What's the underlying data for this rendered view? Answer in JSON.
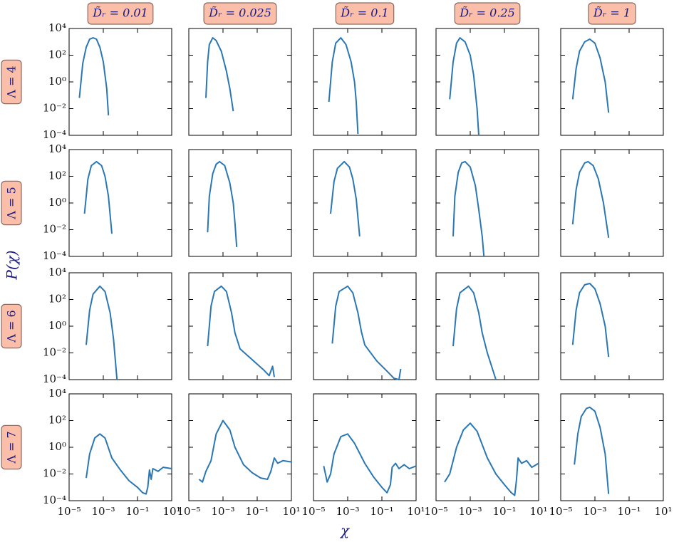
{
  "chart_data": {
    "type": "line",
    "xscale": "log",
    "yscale": "log",
    "col_titles": [
      "D̃ᵣ = 0.01",
      "D̃ᵣ = 0.025",
      "D̃ᵣ = 0.1",
      "D̃ᵣ = 0.25",
      "D̃ᵣ = 1"
    ],
    "row_titles": [
      "Λ = 4",
      "Λ = 5",
      "Λ = 6",
      "Λ = 7"
    ],
    "xlabel": "χ",
    "ylabel": "P(χ)",
    "color": "#2a77b4",
    "xlim": [
      1e-05,
      10
    ],
    "ylim": [
      0.0001,
      10000
    ],
    "xticks": [
      {
        "value": 1e-05,
        "label": "10⁻⁵"
      },
      {
        "value": 0.001,
        "label": "10⁻³"
      },
      {
        "value": 0.1,
        "label": "10⁻¹"
      },
      {
        "value": 10,
        "label": "10¹"
      }
    ],
    "yticks": [
      {
        "value": 0.0001,
        "label": "10⁻⁴"
      },
      {
        "value": 0.01,
        "label": "10⁻²"
      },
      {
        "value": 1,
        "label": "10⁰"
      },
      {
        "value": 100,
        "label": "10²"
      },
      {
        "value": 10000,
        "label": "10⁴"
      }
    ],
    "panels": [
      {
        "x": [
          3.98e-05,
          6.31e-05,
          0.0001,
          0.000158,
          0.000251,
          0.000398,
          0.000631,
          0.001,
          0.00158,
          0.002
        ],
        "values": [
          0.0631,
          25.1,
          398,
          1585,
          1995,
          1585,
          398,
          31.6,
          0.316,
          0.00316
        ]
      },
      {
        "x": [
          0.0001,
          0.000126,
          0.000158,
          0.000251,
          0.000398,
          0.000794,
          0.00158,
          0.00251,
          0.00398
        ],
        "values": [
          0.0631,
          31.6,
          631,
          1995,
          1259,
          200,
          6.31,
          0.316,
          0.00631
        ]
      },
      {
        "x": [
          7.94e-05,
          0.000126,
          0.0002,
          0.000398,
          0.000794,
          0.00158,
          0.00251,
          0.00316,
          0.00398
        ],
        "values": [
          0.0316,
          31.6,
          794,
          1995,
          631,
          31.6,
          1,
          0.0316,
          0.000126
        ]
      },
      {
        "x": [
          6.31e-05,
          0.0001,
          0.000158,
          0.000251,
          0.000501,
          0.001,
          0.00158,
          0.00251,
          0.00316
        ],
        "values": [
          0.0501,
          31.6,
          794,
          1995,
          1000,
          100,
          3.16,
          0.01,
          0.0001
        ]
      },
      {
        "x": [
          5.01e-05,
          7.94e-05,
          0.000126,
          0.000251,
          0.000501,
          0.001,
          0.002,
          0.00398,
          0.00631
        ],
        "values": [
          0.0501,
          10,
          200,
          1000,
          1585,
          794,
          63.1,
          1,
          0.00501
        ]
      },
      {
        "x": [
          7.94e-05,
          0.000126,
          0.0002,
          0.000398,
          0.000794,
          0.00126,
          0.002,
          0.00316
        ],
        "values": [
          0.158,
          63.1,
          631,
          1259,
          631,
          100,
          3.16,
          0.00501
        ]
      },
      {
        "x": [
          0.000126,
          0.000158,
          0.000251,
          0.000398,
          0.000631,
          0.00126,
          0.00251,
          0.00398,
          0.00501,
          0.00631
        ],
        "values": [
          0.00631,
          3.16,
          158,
          794,
          1259,
          631,
          31.6,
          1,
          0.0316,
          0.000501
        ]
      },
      {
        "x": [
          0.0001,
          0.000158,
          0.000251,
          0.000631,
          0.00126,
          0.002,
          0.00316,
          0.00501
        ],
        "values": [
          0.158,
          39.8,
          398,
          1259,
          501,
          63.1,
          2,
          0.00316
        ]
      },
      {
        "x": [
          0.0001,
          0.000126,
          0.0002,
          0.000316,
          0.000501,
          0.001,
          0.002,
          0.00316,
          0.00501,
          0.00631
        ],
        "values": [
          0.00316,
          3.16,
          200,
          1000,
          1259,
          501,
          20,
          0.316,
          0.00316,
          0.0001
        ]
      },
      {
        "x": [
          5.01e-05,
          7.94e-05,
          0.000126,
          0.000251,
          0.000398,
          0.000794,
          0.00158,
          0.00316,
          0.00631
        ],
        "values": [
          0.0251,
          10,
          200,
          1000,
          1259,
          631,
          63.1,
          1,
          0.00251
        ]
      },
      {
        "x": [
          0.0001,
          0.000158,
          0.000251,
          0.000631,
          0.00126,
          0.00251,
          0.00398,
          0.00501,
          0.00631
        ],
        "values": [
          0.0398,
          15.8,
          251,
          1000,
          398,
          10,
          0.1,
          0.00316,
          0.0001
        ]
      },
      {
        "x": [
          0.000126,
          0.0002,
          0.000316,
          0.000794,
          0.00158,
          0.00316,
          0.00501,
          0.01,
          0.0501,
          0.251,
          0.501,
          0.794,
          1
        ],
        "values": [
          0.0316,
          31.6,
          398,
          1000,
          398,
          10,
          0.316,
          0.02,
          0.00316,
          0.000501,
          0.0002,
          0.001,
          0.000158
        ]
      },
      {
        "x": [
          0.000126,
          0.0002,
          0.000316,
          0.001,
          0.002,
          0.00398,
          0.00631,
          0.01,
          0.0501,
          0.251,
          0.501,
          1,
          1.26
        ],
        "values": [
          0.0501,
          31.6,
          398,
          1000,
          316,
          10,
          0.398,
          0.0398,
          0.00251,
          0.000316,
          0.000126,
          0.0001,
          0.000631
        ]
      },
      {
        "x": [
          0.0001,
          0.000158,
          0.000251,
          0.000794,
          0.00158,
          0.00316,
          0.00501,
          0.01,
          0.02,
          0.0316
        ],
        "values": [
          0.0316,
          20,
          316,
          1000,
          316,
          10,
          0.316,
          0.01,
          0.000631,
          0.0001
        ]
      },
      {
        "x": [
          5.01e-05,
          7.94e-05,
          0.000126,
          0.000251,
          0.000501,
          0.001,
          0.002,
          0.00398,
          0.00631
        ],
        "values": [
          0.0398,
          15.8,
          316,
          1259,
          1585,
          631,
          50.1,
          1,
          0.00501
        ]
      },
      {
        "x": [
          0.0001,
          0.000158,
          0.000316,
          0.000631,
          0.00126,
          0.00316,
          0.01,
          0.0316,
          0.1,
          0.2,
          0.316,
          0.398,
          0.501,
          0.631,
          0.794,
          1.58,
          3.16,
          10
        ],
        "values": [
          0.00501,
          0.316,
          5.01,
          10,
          5.01,
          0.158,
          0.02,
          0.00316,
          0.001,
          0.000398,
          0.000316,
          0.001,
          0.02,
          0.00398,
          0.0251,
          0.0158,
          0.0316,
          0.0251
        ]
      },
      {
        "x": [
          3.98e-05,
          6.31e-05,
          0.0001,
          0.0002,
          0.000398,
          0.001,
          0.00251,
          0.00501,
          0.0158,
          0.0501,
          0.158,
          0.398,
          0.631,
          1,
          1.58,
          3.16,
          10
        ],
        "values": [
          0.00398,
          0.00251,
          0.0158,
          0.1,
          10,
          100,
          20,
          1,
          0.0501,
          0.0126,
          0.00501,
          0.00398,
          0.0158,
          0.158,
          0.0631,
          0.1,
          0.0794
        ]
      },
      {
        "x": [
          3.98e-05,
          6.31e-05,
          0.0001,
          0.000158,
          0.000398,
          0.001,
          0.00251,
          0.01,
          0.0316,
          0.1,
          0.2,
          0.316,
          0.398,
          0.631,
          1,
          2,
          3.98,
          10
        ],
        "values": [
          0.0398,
          0.00251,
          0.01,
          0.316,
          6.31,
          10,
          2,
          0.0631,
          0.00631,
          0.001,
          0.000398,
          0.00158,
          0.0316,
          0.0631,
          0.0251,
          0.0501,
          0.0251,
          0.0398
        ]
      },
      {
        "x": [
          3.16e-05,
          6.31e-05,
          0.000158,
          0.000398,
          0.001,
          0.00251,
          0.01,
          0.0316,
          0.1,
          0.251,
          0.398,
          0.501,
          0.631,
          1,
          2,
          3.98,
          10
        ],
        "values": [
          0.00251,
          0.01,
          1,
          20,
          63.1,
          15.8,
          0.158,
          0.01,
          0.00158,
          0.000398,
          0.000251,
          0.00316,
          0.158,
          0.0631,
          0.1,
          0.0316,
          0.0631
        ]
      },
      {
        "x": [
          6.31e-05,
          0.0001,
          0.000158,
          0.000316,
          0.000501,
          0.001,
          0.002,
          0.00398,
          0.00631
        ],
        "values": [
          0.0501,
          10,
          200,
          794,
          1000,
          501,
          31.6,
          0.316,
          0.000316
        ]
      }
    ]
  }
}
